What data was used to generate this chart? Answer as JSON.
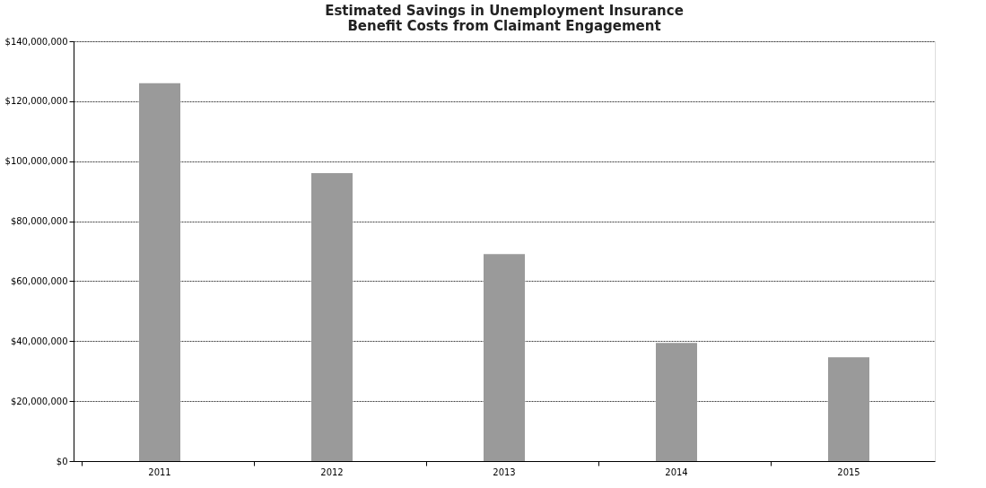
{
  "chart_data": {
    "type": "bar",
    "title": [
      "Estimated Savings in Unemployment Insurance",
      "Benefit Costs from Claimant Engagement"
    ],
    "categories": [
      "2011",
      "2012",
      "2013",
      "2014",
      "2015"
    ],
    "series": [
      {
        "color": "#9a9a9a",
        "values": [
          126000000,
          96000000,
          69000000,
          39400000,
          34600000
        ]
      }
    ],
    "ylim": [
      0,
      140000000
    ],
    "yticks": [
      {
        "value": 0,
        "label": "$0"
      },
      {
        "value": 20000000,
        "label": "$20,000,000"
      },
      {
        "value": 40000000,
        "label": "$40,000,000"
      },
      {
        "value": 60000000,
        "label": "$60,000,000"
      },
      {
        "value": 80000000,
        "label": "$80,000,000"
      },
      {
        "value": 100000000,
        "label": "$100,000,000"
      },
      {
        "value": 120000000,
        "label": "$120,000,000"
      },
      {
        "value": 140000000,
        "label": "$140,000,000"
      }
    ],
    "grid": "y",
    "legend": false
  }
}
